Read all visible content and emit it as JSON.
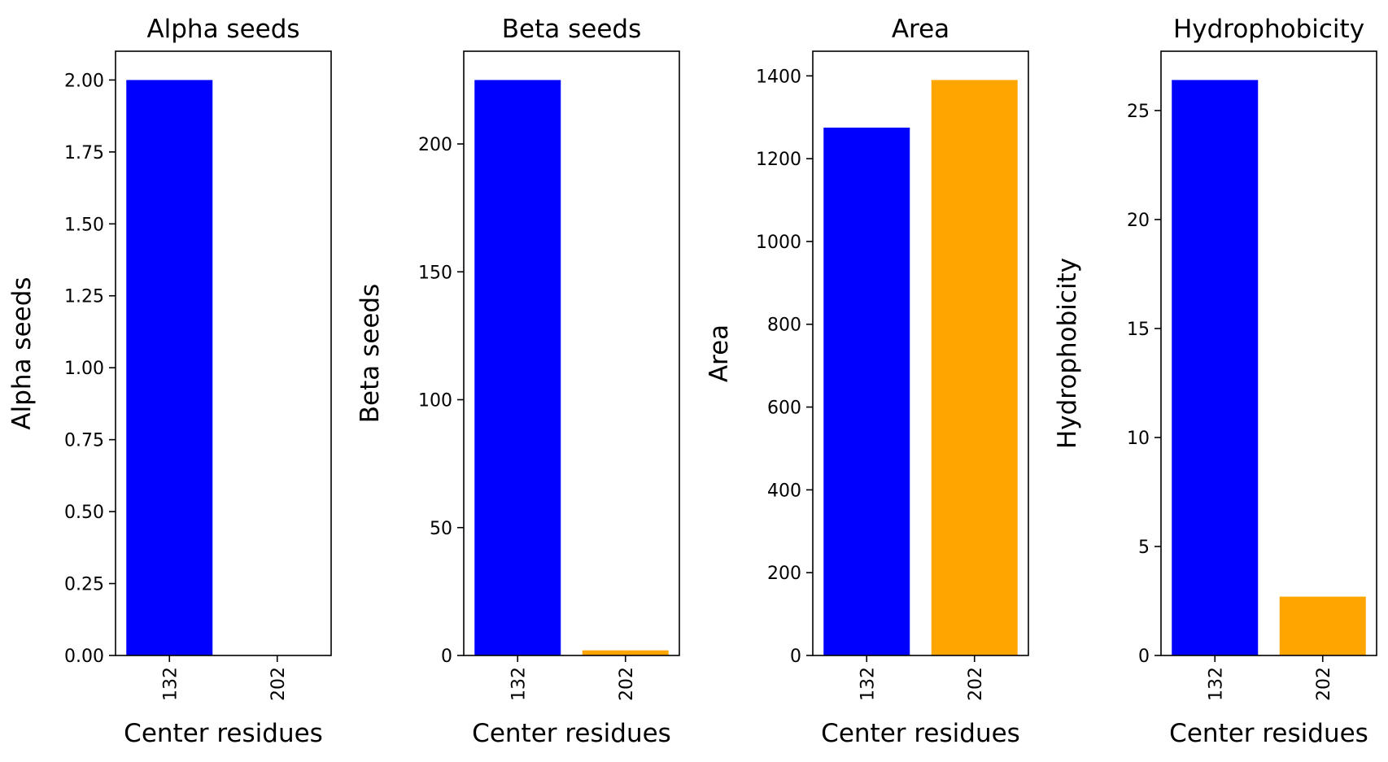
{
  "chart_data": [
    {
      "type": "bar",
      "title": "Alpha seeds",
      "xlabel": "Center residues",
      "ylabel": "Alpha seeds",
      "categories": [
        "132",
        "202"
      ],
      "values": [
        2.0,
        0.0
      ],
      "colors": [
        "#0000ff",
        "#ffa500"
      ],
      "ylim": [
        0,
        2.1
      ],
      "yticks": [
        0,
        0.25,
        0.5,
        0.75,
        1.0,
        1.25,
        1.5,
        1.75,
        2.0
      ],
      "ytick_labels": [
        "0.00",
        "0.25",
        "0.50",
        "0.75",
        "1.00",
        "1.25",
        "1.50",
        "1.75",
        "2.00"
      ],
      "grid": false
    },
    {
      "type": "bar",
      "title": "Beta seeds",
      "xlabel": "Center residues",
      "ylabel": "Beta seeds",
      "categories": [
        "132",
        "202"
      ],
      "values": [
        225,
        2
      ],
      "colors": [
        "#0000ff",
        "#ffa500"
      ],
      "ylim": [
        0,
        236.25
      ],
      "yticks": [
        0,
        50,
        100,
        150,
        200
      ],
      "ytick_labels": [
        "0",
        "50",
        "100",
        "150",
        "200"
      ],
      "grid": false
    },
    {
      "type": "bar",
      "title": "Area",
      "xlabel": "Center residues",
      "ylabel": "Area",
      "categories": [
        "132",
        "202"
      ],
      "values": [
        1275,
        1390
      ],
      "colors": [
        "#0000ff",
        "#ffa500"
      ],
      "ylim": [
        0,
        1459.5
      ],
      "yticks": [
        0,
        200,
        400,
        600,
        800,
        1000,
        1200,
        1400
      ],
      "ytick_labels": [
        "0",
        "200",
        "400",
        "600",
        "800",
        "1000",
        "1200",
        "1400"
      ],
      "grid": false
    },
    {
      "type": "bar",
      "title": "Hydrophobicity",
      "xlabel": "Center residues",
      "ylabel": "Hydrophobicity",
      "categories": [
        "132",
        "202"
      ],
      "values": [
        26.4,
        2.7
      ],
      "colors": [
        "#0000ff",
        "#ffa500"
      ],
      "ylim": [
        0,
        27.72
      ],
      "yticks": [
        0,
        5,
        10,
        15,
        20,
        25
      ],
      "ytick_labels": [
        "0",
        "5",
        "10",
        "15",
        "20",
        "25"
      ],
      "grid": false
    }
  ]
}
